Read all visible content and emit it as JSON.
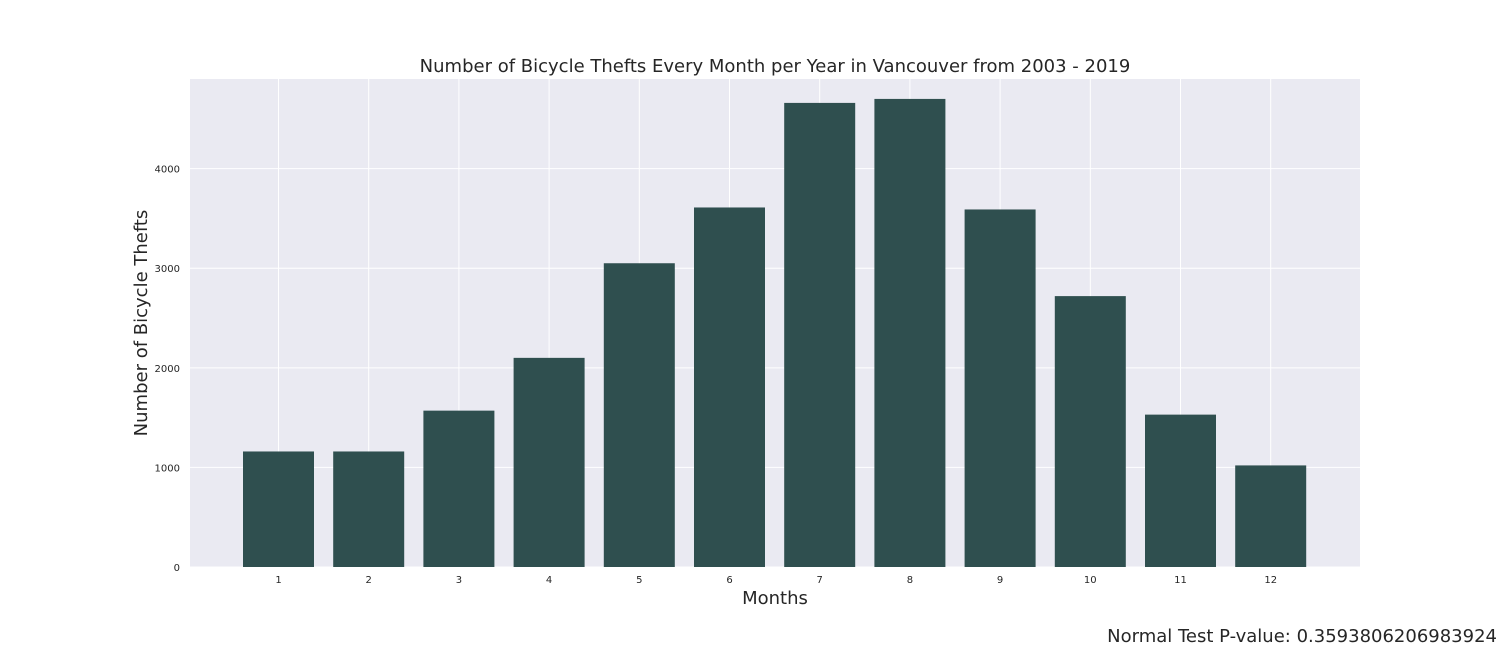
{
  "chart_data": {
    "type": "bar",
    "title": "Number of Bicycle Thefts Every Month per Year in Vancouver from 2003 - 2019",
    "xlabel": "Months",
    "ylabel": "Number of Bicycle Thefts",
    "categories": [
      "1",
      "2",
      "3",
      "4",
      "5",
      "6",
      "7",
      "8",
      "9",
      "10",
      "11",
      "12"
    ],
    "values": [
      1160,
      1160,
      1570,
      2100,
      3050,
      3610,
      4660,
      4700,
      3590,
      2720,
      1530,
      1020
    ],
    "yticks": [
      "0",
      "1000",
      "2000",
      "3000",
      "4000"
    ],
    "ylim": [
      0,
      4900
    ],
    "grid": true,
    "bar_color": "#2f4f4f",
    "plot_background": "#eaeaf2",
    "grid_color": "#ffffff",
    "annotation": "Normal Test P-value: 0.3593806206983924"
  }
}
